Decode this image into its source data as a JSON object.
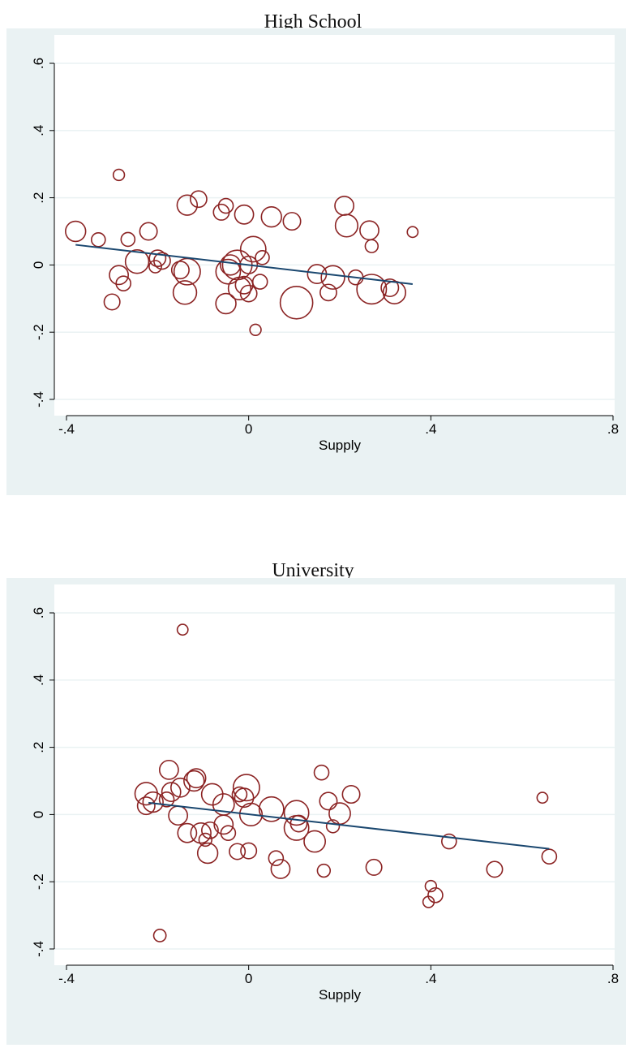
{
  "colors": {
    "outer_bg": "#eaf2f3",
    "plot_bg": "#ffffff",
    "grid": "#eaf2f3",
    "marker": "#8b2323",
    "fit_line": "#1a476f"
  },
  "chart_data": [
    {
      "type": "scatter",
      "title": "High School",
      "xlabel": "Supply",
      "ylabel": "",
      "xlim": [
        -0.4,
        0.8
      ],
      "ylim": [
        -0.4,
        0.6
      ],
      "xticks": [
        "-.4",
        "0",
        ".4",
        ".8"
      ],
      "yticks": [
        "-.4",
        "-.2",
        "0",
        ".2",
        ".4",
        ".6"
      ],
      "grid": true,
      "fit_line": {
        "x": [
          -0.38,
          0.36
        ],
        "y": [
          0.06,
          -0.057
        ]
      },
      "points": [
        {
          "x": -0.38,
          "y": 0.1,
          "w": 3
        },
        {
          "x": -0.33,
          "y": 0.075,
          "w": 1
        },
        {
          "x": -0.285,
          "y": 0.268,
          "w": 0.5
        },
        {
          "x": -0.265,
          "y": 0.076,
          "w": 1
        },
        {
          "x": -0.3,
          "y": -0.11,
          "w": 1.5
        },
        {
          "x": -0.285,
          "y": -0.03,
          "w": 2.5
        },
        {
          "x": -0.275,
          "y": -0.055,
          "w": 1.2
        },
        {
          "x": -0.245,
          "y": 0.01,
          "w": 4.5
        },
        {
          "x": -0.22,
          "y": 0.1,
          "w": 2
        },
        {
          "x": -0.205,
          "y": -0.005,
          "w": 0.7
        },
        {
          "x": -0.2,
          "y": 0.02,
          "w": 1.7
        },
        {
          "x": -0.19,
          "y": 0.012,
          "w": 1.7
        },
        {
          "x": -0.15,
          "y": -0.015,
          "w": 2
        },
        {
          "x": -0.14,
          "y": -0.082,
          "w": 4.5
        },
        {
          "x": -0.135,
          "y": -0.02,
          "w": 6
        },
        {
          "x": -0.135,
          "y": 0.178,
          "w": 3
        },
        {
          "x": -0.11,
          "y": 0.196,
          "w": 1.7
        },
        {
          "x": -0.06,
          "y": 0.157,
          "w": 1.5
        },
        {
          "x": -0.05,
          "y": 0.176,
          "w": 1.2
        },
        {
          "x": -0.05,
          "y": -0.115,
          "w": 3
        },
        {
          "x": -0.045,
          "y": -0.02,
          "w": 5
        },
        {
          "x": -0.04,
          "y": 0.0,
          "w": 3
        },
        {
          "x": -0.025,
          "y": 0.0,
          "w": 8
        },
        {
          "x": -0.02,
          "y": -0.07,
          "w": 4
        },
        {
          "x": -0.01,
          "y": -0.06,
          "w": 2
        },
        {
          "x": -0.01,
          "y": 0.15,
          "w": 2.5
        },
        {
          "x": 0.0,
          "y": -0.085,
          "w": 1.7
        },
        {
          "x": 0.0,
          "y": 0.0,
          "w": 2
        },
        {
          "x": 0.01,
          "y": 0.047,
          "w": 5.5
        },
        {
          "x": 0.015,
          "y": -0.193,
          "w": 0.5
        },
        {
          "x": 0.025,
          "y": -0.05,
          "w": 1.2
        },
        {
          "x": 0.03,
          "y": 0.022,
          "w": 1
        },
        {
          "x": 0.05,
          "y": 0.143,
          "w": 3
        },
        {
          "x": 0.095,
          "y": 0.13,
          "w": 2
        },
        {
          "x": 0.105,
          "y": -0.112,
          "w": 10
        },
        {
          "x": 0.15,
          "y": -0.027,
          "w": 2.5
        },
        {
          "x": 0.175,
          "y": -0.082,
          "w": 1.7
        },
        {
          "x": 0.185,
          "y": -0.037,
          "w": 4.5
        },
        {
          "x": 0.21,
          "y": 0.176,
          "w": 2.5
        },
        {
          "x": 0.215,
          "y": 0.117,
          "w": 4
        },
        {
          "x": 0.235,
          "y": -0.037,
          "w": 1.2
        },
        {
          "x": 0.265,
          "y": 0.103,
          "w": 2.5
        },
        {
          "x": 0.27,
          "y": 0.056,
          "w": 0.8
        },
        {
          "x": 0.27,
          "y": -0.072,
          "w": 8
        },
        {
          "x": 0.31,
          "y": -0.068,
          "w": 2
        },
        {
          "x": 0.32,
          "y": -0.082,
          "w": 4
        },
        {
          "x": 0.36,
          "y": 0.098,
          "w": 0.4
        }
      ]
    },
    {
      "type": "scatter",
      "title": "University",
      "xlabel": "Supply",
      "ylabel": "",
      "xlim": [
        -0.4,
        0.8
      ],
      "ylim": [
        -0.4,
        0.6
      ],
      "xticks": [
        "-.4",
        "0",
        ".4",
        ".8"
      ],
      "yticks": [
        "-.4",
        "-.2",
        "0",
        ".2",
        ".4",
        ".6"
      ],
      "grid": true,
      "fit_line": {
        "x": [
          -0.22,
          0.66
        ],
        "y": [
          0.035,
          -0.102
        ]
      },
      "points": [
        {
          "x": -0.145,
          "y": 0.55,
          "w": 0.4
        },
        {
          "x": -0.225,
          "y": 0.062,
          "w": 4
        },
        {
          "x": -0.225,
          "y": 0.026,
          "w": 2
        },
        {
          "x": -0.21,
          "y": 0.037,
          "w": 3
        },
        {
          "x": -0.195,
          "y": -0.36,
          "w": 0.7
        },
        {
          "x": -0.18,
          "y": 0.045,
          "w": 1.2
        },
        {
          "x": -0.175,
          "y": 0.133,
          "w": 2.5
        },
        {
          "x": -0.17,
          "y": 0.067,
          "w": 2.5
        },
        {
          "x": -0.155,
          "y": -0.003,
          "w": 2.5
        },
        {
          "x": -0.15,
          "y": 0.08,
          "w": 2.5
        },
        {
          "x": -0.135,
          "y": -0.055,
          "w": 2.5
        },
        {
          "x": -0.12,
          "y": 0.1,
          "w": 3
        },
        {
          "x": -0.115,
          "y": 0.108,
          "w": 2.5
        },
        {
          "x": -0.105,
          "y": -0.055,
          "w": 3
        },
        {
          "x": -0.095,
          "y": -0.075,
          "w": 0.8
        },
        {
          "x": -0.09,
          "y": -0.115,
          "w": 3
        },
        {
          "x": -0.085,
          "y": -0.047,
          "w": 1.7
        },
        {
          "x": -0.08,
          "y": 0.06,
          "w": 3.5
        },
        {
          "x": -0.055,
          "y": 0.03,
          "w": 3.5
        },
        {
          "x": -0.055,
          "y": -0.03,
          "w": 2.5
        },
        {
          "x": -0.045,
          "y": -0.055,
          "w": 1.2
        },
        {
          "x": -0.025,
          "y": -0.11,
          "w": 1.5
        },
        {
          "x": -0.02,
          "y": 0.06,
          "w": 1.2
        },
        {
          "x": -0.01,
          "y": 0.05,
          "w": 2.5
        },
        {
          "x": -0.005,
          "y": 0.08,
          "w": 6
        },
        {
          "x": 0.0,
          "y": -0.108,
          "w": 1.5
        },
        {
          "x": 0.005,
          "y": 0.0,
          "w": 4
        },
        {
          "x": 0.05,
          "y": 0.016,
          "w": 5
        },
        {
          "x": 0.06,
          "y": -0.13,
          "w": 1.2
        },
        {
          "x": 0.07,
          "y": -0.162,
          "w": 2.5
        },
        {
          "x": 0.105,
          "y": 0.005,
          "w": 5
        },
        {
          "x": 0.105,
          "y": -0.04,
          "w": 5
        },
        {
          "x": 0.11,
          "y": -0.027,
          "w": 1.7
        },
        {
          "x": 0.145,
          "y": -0.08,
          "w": 3.5
        },
        {
          "x": 0.16,
          "y": 0.125,
          "w": 1.2
        },
        {
          "x": 0.165,
          "y": -0.167,
          "w": 0.8
        },
        {
          "x": 0.175,
          "y": 0.04,
          "w": 2
        },
        {
          "x": 0.185,
          "y": -0.035,
          "w": 0.8
        },
        {
          "x": 0.2,
          "y": 0.003,
          "w": 3.5
        },
        {
          "x": 0.225,
          "y": 0.06,
          "w": 2
        },
        {
          "x": 0.275,
          "y": -0.157,
          "w": 1.5
        },
        {
          "x": 0.395,
          "y": -0.26,
          "w": 0.5
        },
        {
          "x": 0.4,
          "y": -0.213,
          "w": 0.5
        },
        {
          "x": 0.41,
          "y": -0.24,
          "w": 1.2
        },
        {
          "x": 0.44,
          "y": -0.08,
          "w": 1.2
        },
        {
          "x": 0.54,
          "y": -0.163,
          "w": 1.5
        },
        {
          "x": 0.645,
          "y": 0.05,
          "w": 0.4
        },
        {
          "x": 0.66,
          "y": -0.125,
          "w": 1.2
        }
      ]
    }
  ]
}
